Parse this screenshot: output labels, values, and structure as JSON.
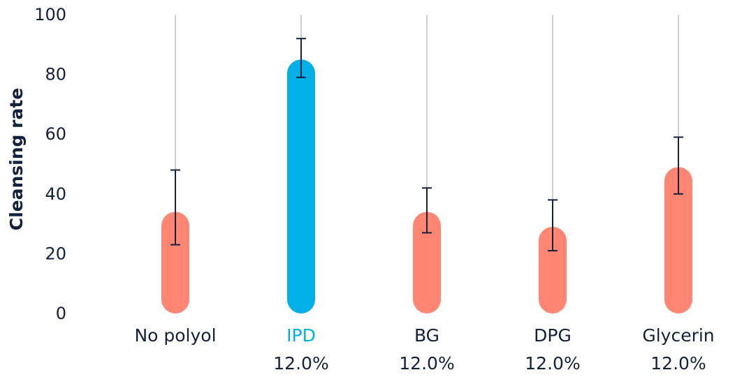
{
  "chart_data": {
    "type": "bar",
    "title": "",
    "xlabel": "",
    "ylabel": "Cleansing rate",
    "ylim": [
      0,
      100
    ],
    "yticks": [
      "0",
      "20",
      "40",
      "60",
      "80",
      "100"
    ],
    "categories": [
      "No polyol",
      "IPD",
      "BG",
      "DPG",
      "Glycerin"
    ],
    "sublabels": [
      "",
      "12.0%",
      "12.0%",
      "12.0%",
      "12.0%"
    ],
    "values": [
      34,
      85,
      34,
      29,
      49
    ],
    "error_low": [
      23,
      79,
      27,
      21,
      40
    ],
    "error_high": [
      48,
      92,
      42,
      38,
      59
    ],
    "highlight_index": 1,
    "colors": {
      "default_bar": "#ff8672",
      "highlight_bar": "#00b0e6",
      "highlight_label": "#00b0e6",
      "error_bar": "#14213d",
      "gridline": "#cfcfd4",
      "text": "#14213d"
    },
    "grid": "vertical-per-category"
  }
}
